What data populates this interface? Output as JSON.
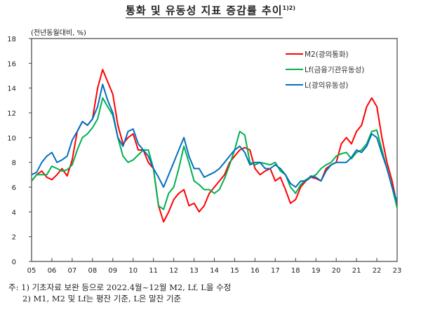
{
  "title": "통화 및 유동성 지표 증감률 추이",
  "title_sup": "1)2)",
  "notes": {
    "prefix": "주:",
    "note1": "1) 기초자료 보완 등으로 2022.4월~12월 M2, Lf, L을 수정",
    "note2": "2) M1, M2 및 Lf는 평잔 기준, L은 말잔 기준"
  },
  "chart_data": {
    "type": "line",
    "title": "통화 및 유동성 지표 증감률 추이",
    "ylabel": "(전년동월대비, %)",
    "xlabel": "",
    "ylim": [
      0,
      18
    ],
    "xlim": [
      2005,
      2023
    ],
    "yticks": [
      0,
      2,
      4,
      6,
      8,
      10,
      12,
      14,
      16,
      18
    ],
    "xtick_labels": [
      "05",
      "06",
      "07",
      "08",
      "09",
      "10",
      "11",
      "12",
      "13",
      "14",
      "15",
      "16",
      "17",
      "18",
      "19",
      "20",
      "21",
      "22",
      "23"
    ],
    "grid": false,
    "legend_position": "top-right",
    "x_step": 0.25,
    "series": [
      {
        "name": "M2(광의통화)",
        "color": "#ff0000",
        "values": [
          6.5,
          7.0,
          7.3,
          6.8,
          6.6,
          7.0,
          7.5,
          6.9,
          8.2,
          10.5,
          11.3,
          11.0,
          11.5,
          14.0,
          15.5,
          14.5,
          13.5,
          11.0,
          9.5,
          10.0,
          10.3,
          9.0,
          9.0,
          8.0,
          7.5,
          4.5,
          3.2,
          4.0,
          5.0,
          5.5,
          5.8,
          4.5,
          4.7,
          4.0,
          4.5,
          5.5,
          6.0,
          6.5,
          7.0,
          8.0,
          8.5,
          9.0,
          9.2,
          9.0,
          7.5,
          7.0,
          7.3,
          7.5,
          6.5,
          6.8,
          5.8,
          4.7,
          5.0,
          6.0,
          6.5,
          6.8,
          6.7,
          6.5,
          7.5,
          7.8,
          8.0,
          9.5,
          10.0,
          9.5,
          10.5,
          11.0,
          12.5,
          13.2,
          12.5,
          10.0,
          8.0,
          6.5,
          4.5
        ]
      },
      {
        "name": "Lf(금융기관유동성)",
        "color": "#00b050",
        "values": [
          6.5,
          7.0,
          7.0,
          7.0,
          7.7,
          7.5,
          7.3,
          7.4,
          7.8,
          9.0,
          10.0,
          10.3,
          10.8,
          11.5,
          13.2,
          12.5,
          11.8,
          10.0,
          8.5,
          8.0,
          8.2,
          8.6,
          9.0,
          9.0,
          7.5,
          4.5,
          4.2,
          5.5,
          6.0,
          7.5,
          9.3,
          8.0,
          6.5,
          6.2,
          5.8,
          5.8,
          5.5,
          5.8,
          6.7,
          7.8,
          9.0,
          10.5,
          10.2,
          8.0,
          7.8,
          8.0,
          7.9,
          7.8,
          8.0,
          7.3,
          7.0,
          6.0,
          5.5,
          6.2,
          6.6,
          6.8,
          7.0,
          7.5,
          7.8,
          8.0,
          8.5,
          8.7,
          8.8,
          8.3,
          8.8,
          9.0,
          9.5,
          10.5,
          10.6,
          9.0,
          7.5,
          6.0,
          4.3
        ]
      },
      {
        "name": "L(광의유동성)",
        "color": "#0070c0",
        "values": [
          7.0,
          7.2,
          8.0,
          8.5,
          8.8,
          8.0,
          8.2,
          8.5,
          9.8,
          10.5,
          11.3,
          11.0,
          11.5,
          12.5,
          14.3,
          13.0,
          12.0,
          10.0,
          9.3,
          10.5,
          10.7,
          9.5,
          9.0,
          8.5,
          7.5,
          6.8,
          6.0,
          7.0,
          8.0,
          9.0,
          10.0,
          8.5,
          7.5,
          7.5,
          6.8,
          7.0,
          7.2,
          7.5,
          8.0,
          8.5,
          9.0,
          9.3,
          8.8,
          7.8,
          8.0,
          8.0,
          7.5,
          7.5,
          7.8,
          7.5,
          7.0,
          6.3,
          6.0,
          6.5,
          6.5,
          6.9,
          6.8,
          6.5,
          7.3,
          7.8,
          8.0,
          8.0,
          8.0,
          8.4,
          9.0,
          8.8,
          9.3,
          10.3,
          10.0,
          8.7,
          7.5,
          6.0,
          4.8
        ]
      }
    ]
  }
}
